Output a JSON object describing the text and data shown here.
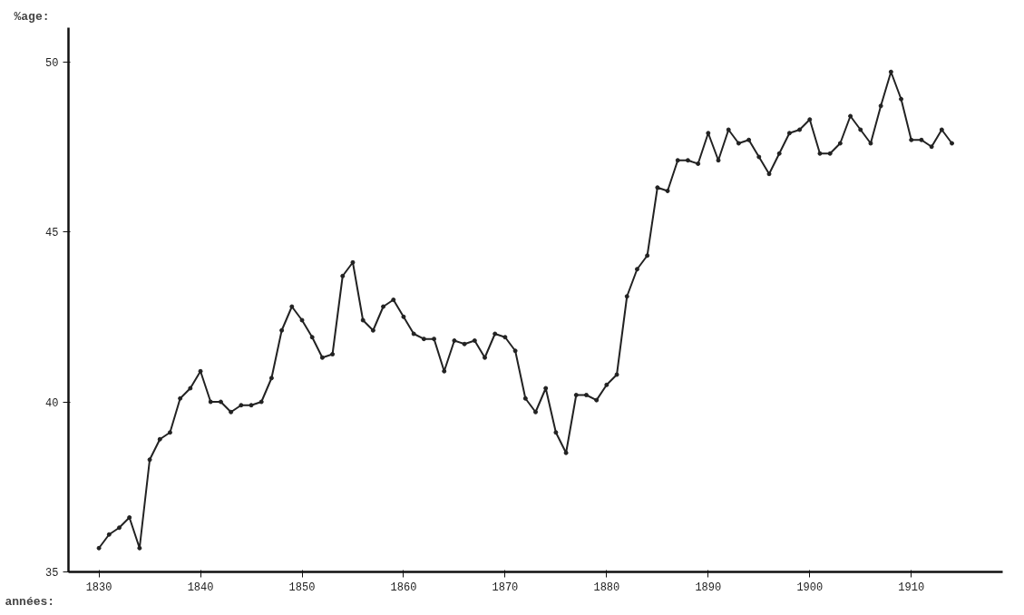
{
  "chart_data": {
    "type": "line",
    "xlabel": "années:",
    "ylabel": "%age:",
    "x": [
      1830,
      1831,
      1832,
      1833,
      1834,
      1835,
      1836,
      1837,
      1838,
      1839,
      1840,
      1841,
      1842,
      1843,
      1844,
      1845,
      1846,
      1847,
      1848,
      1849,
      1850,
      1851,
      1852,
      1853,
      1854,
      1855,
      1856,
      1857,
      1858,
      1859,
      1860,
      1861,
      1862,
      1863,
      1864,
      1865,
      1866,
      1867,
      1868,
      1869,
      1870,
      1871,
      1872,
      1873,
      1874,
      1875,
      1876,
      1877,
      1878,
      1879,
      1880,
      1881,
      1882,
      1883,
      1884,
      1885,
      1886,
      1887,
      1888,
      1889,
      1890,
      1891,
      1892,
      1893,
      1894,
      1895,
      1896,
      1897,
      1898,
      1899,
      1900,
      1901,
      1902,
      1903,
      1904,
      1905,
      1906,
      1907,
      1908,
      1909,
      1910,
      1911,
      1912,
      1913,
      1914
    ],
    "series": [
      {
        "color": "#222222",
        "values": [
          35.7,
          36.1,
          36.3,
          36.6,
          35.7,
          38.3,
          38.9,
          39.1,
          40.1,
          40.4,
          40.9,
          40.0,
          40.0,
          39.7,
          39.9,
          39.9,
          40.0,
          40.7,
          42.1,
          42.8,
          42.4,
          41.9,
          41.3,
          41.4,
          43.7,
          44.1,
          42.4,
          42.1,
          42.8,
          43.0,
          42.5,
          42.0,
          41.85,
          41.85,
          40.9,
          41.8,
          41.7,
          41.8,
          41.3,
          42.0,
          41.9,
          41.5,
          40.1,
          39.7,
          40.4,
          39.1,
          38.5,
          40.2,
          40.2,
          40.05,
          40.5,
          40.8,
          43.1,
          43.9,
          44.3,
          46.3,
          46.2,
          47.1,
          47.1,
          47.0,
          47.9,
          47.1,
          48.0,
          47.6,
          47.7,
          47.2,
          46.7,
          47.3,
          47.9,
          48.0,
          48.3,
          47.3,
          47.3,
          47.6,
          48.4,
          48.0,
          47.6,
          48.7,
          49.7,
          48.9,
          47.7,
          47.7,
          47.5,
          48.0,
          47.6
        ]
      }
    ],
    "xlim": [
      1827,
      1919
    ],
    "ylim": [
      35,
      51
    ],
    "xticks": [
      1830,
      1840,
      1850,
      1860,
      1870,
      1880,
      1890,
      1900,
      1910
    ],
    "yticks": [
      35,
      40,
      45,
      50
    ],
    "grid": false,
    "marker": "circle",
    "line_style": "solid"
  }
}
